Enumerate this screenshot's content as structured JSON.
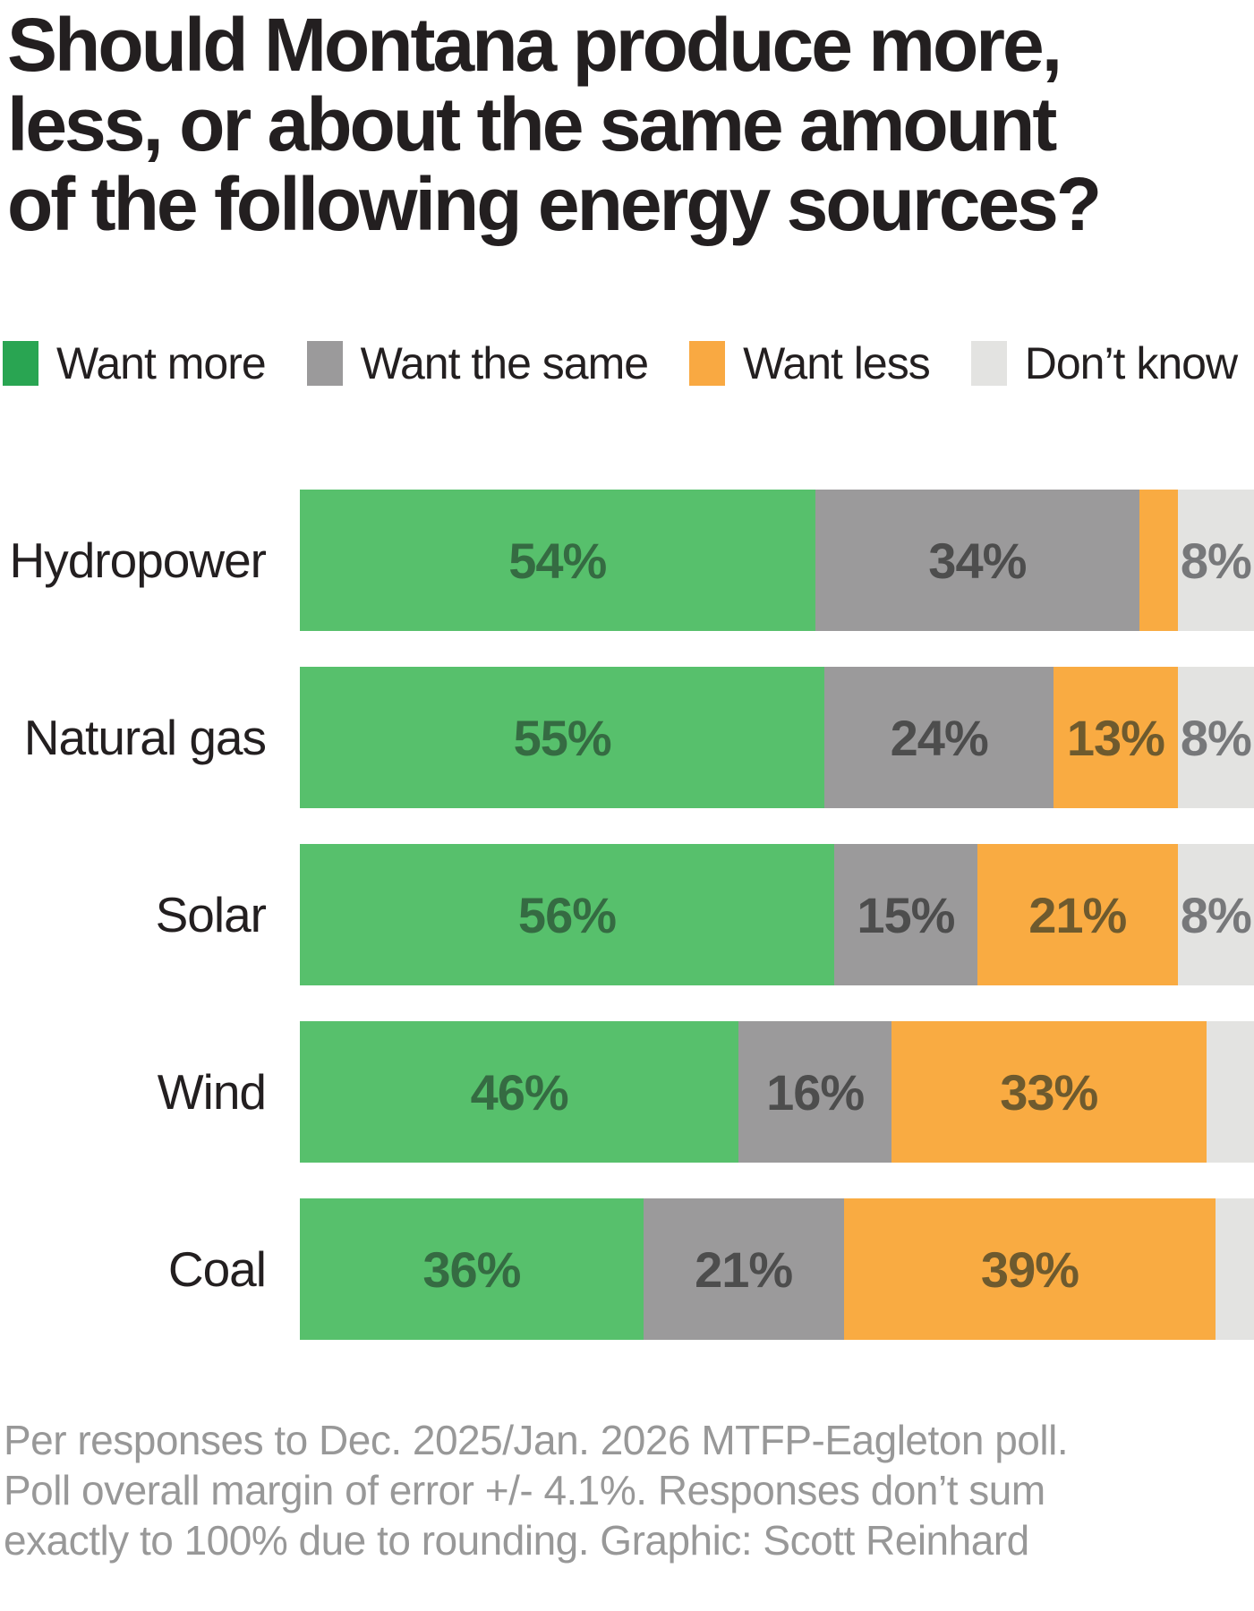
{
  "title": {
    "lines": [
      "Should Montana produce more,",
      "less, or about the same amount",
      "of the following energy sources?"
    ]
  },
  "legend": {
    "items": [
      {
        "label": "Want more",
        "color": "#29a552"
      },
      {
        "label": "Want the same",
        "color": "#9b9a9b"
      },
      {
        "label": "Want less",
        "color": "#f9a942"
      },
      {
        "label": "Don’t know",
        "color": "#e3e3e1"
      }
    ]
  },
  "chart_data": {
    "type": "bar",
    "orientation": "horizontal",
    "stacked": true,
    "unit": "percent",
    "axis_range": [
      0,
      100
    ],
    "grid": false,
    "legend_position": "top",
    "categories": [
      "Hydropower",
      "Natural gas",
      "Solar",
      "Wind",
      "Coal"
    ],
    "series": [
      {
        "name": "Want more",
        "color": "#57c06c",
        "label_color": "#356b42",
        "values": [
          54,
          55,
          56,
          46,
          36
        ]
      },
      {
        "name": "Want the same",
        "color": "#9b9a9b",
        "label_color": "#4d4d4d",
        "values": [
          34,
          24,
          15,
          16,
          21
        ]
      },
      {
        "name": "Want less",
        "color": "#f9ab42",
        "label_color": "#6e5a2e",
        "values": [
          4,
          13,
          21,
          33,
          39
        ]
      },
      {
        "name": "Don’t know",
        "color": "#e3e3e1",
        "label_color": "#77787a",
        "values": [
          8,
          8,
          8,
          5,
          4
        ]
      }
    ],
    "shown_labels": [
      [
        "54%",
        "34%",
        "",
        "8%"
      ],
      [
        "55%",
        "24%",
        "13%",
        "8%"
      ],
      [
        "56%",
        "15%",
        "21%",
        "8%"
      ],
      [
        "46%",
        "16%",
        "33%",
        ""
      ],
      [
        "36%",
        "21%",
        "39%",
        ""
      ]
    ]
  },
  "footer": {
    "lines": [
      "Per responses to Dec. 2025/Jan. 2026 MTFP-Eagleton poll.",
      "Poll overall margin of error +/- 4.1%. Responses don’t sum",
      "exactly to 100% due to rounding. Graphic: Scott Reinhard"
    ]
  }
}
